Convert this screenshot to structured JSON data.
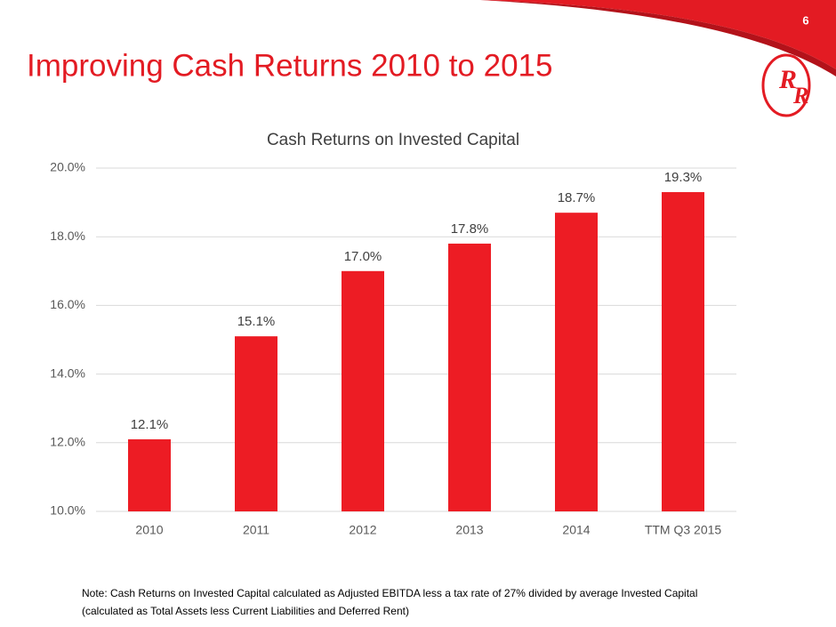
{
  "page_number": "6",
  "slide_title": "Improving Cash Returns 2010 to 2015",
  "note": [
    "Note: Cash Returns on Invested Capital calculated as Adjusted EBITDA less a tax rate of 27% divided by average Invested Capital",
    "(calculated as Total Assets less Current Liabilities and Deferred Rent)"
  ],
  "chart_data": {
    "type": "bar",
    "title": "Cash Returns on Invested Capital",
    "categories": [
      "2010",
      "2011",
      "2012",
      "2013",
      "2014",
      "TTM Q3 2015"
    ],
    "values": [
      12.1,
      15.1,
      17.0,
      17.8,
      18.7,
      19.3
    ],
    "value_labels": [
      "12.1%",
      "15.1%",
      "17.0%",
      "17.8%",
      "18.7%",
      "19.3%"
    ],
    "color": "#ed1c24",
    "ylim": [
      10,
      20
    ],
    "yticks": [
      {
        "value": 10,
        "label": "10.0%"
      },
      {
        "value": 12,
        "label": "12.0%"
      },
      {
        "value": 14,
        "label": "14.0%"
      },
      {
        "value": 16,
        "label": "16.0%"
      },
      {
        "value": 18,
        "label": "18.0%"
      },
      {
        "value": 20,
        "label": "20.0%"
      }
    ],
    "grid": true
  }
}
